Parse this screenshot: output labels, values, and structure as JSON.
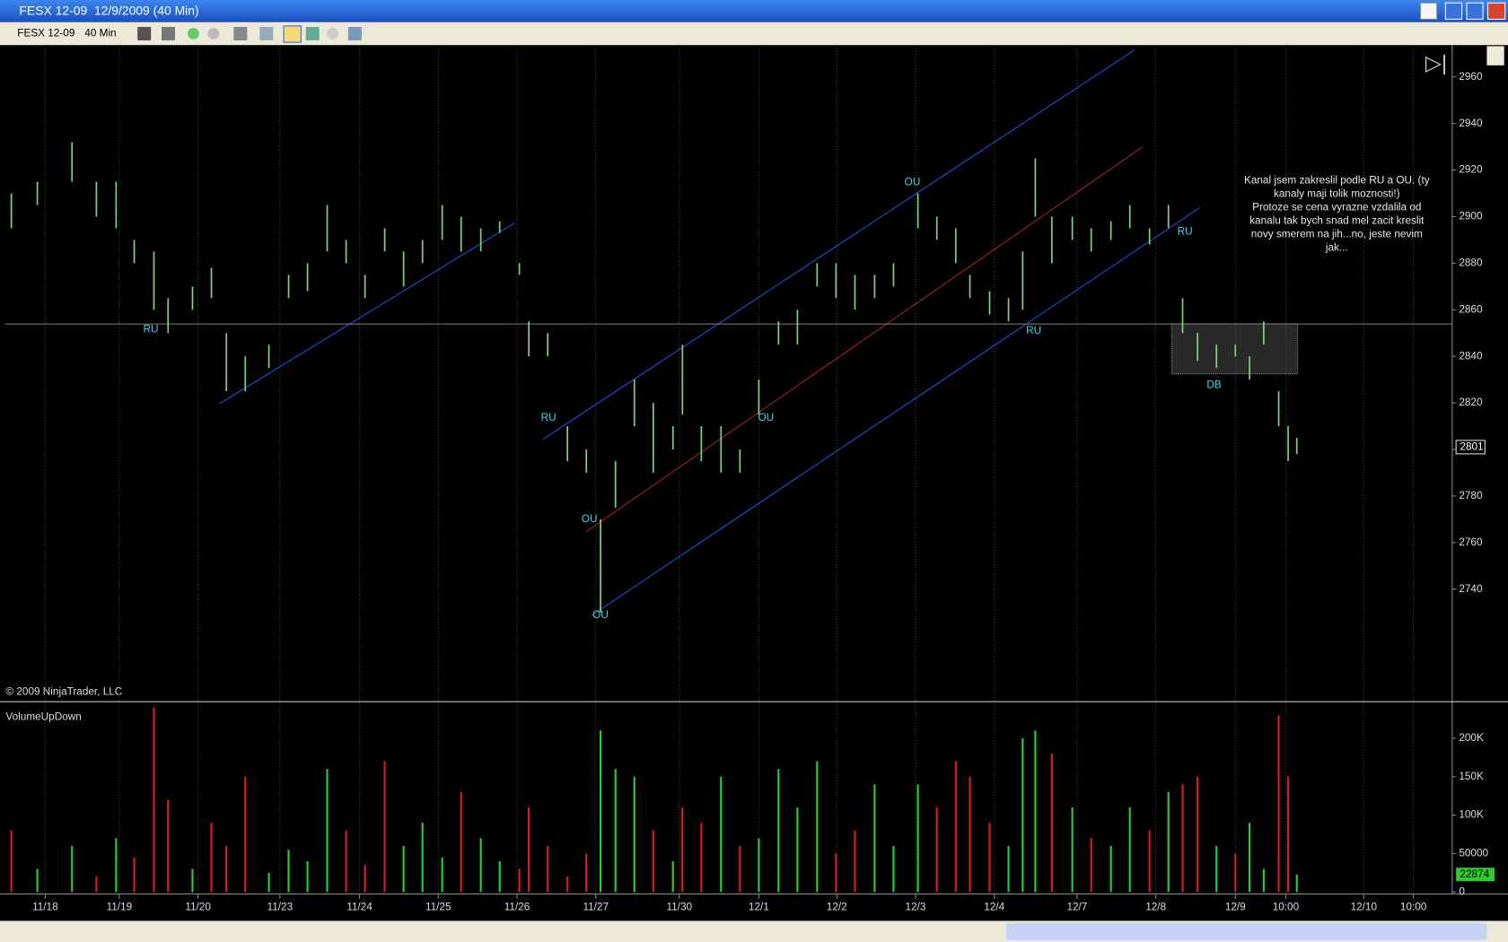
{
  "window": {
    "title": "FESX 12-09  12/9/2009 (40 Min)",
    "instrument": "FESX 12-09",
    "period": "40 Min"
  },
  "chart_data": [
    {
      "type": "range",
      "color": "#7fd07f",
      "x": [
        -0.43,
        -0.1,
        0.34,
        0.65,
        0.9,
        1.13,
        1.38,
        1.56,
        1.87,
        2.11,
        2.3,
        2.54,
        2.84,
        3.09,
        3.33,
        3.58,
        3.82,
        4.06,
        4.31,
        4.55,
        4.79,
        5.04,
        5.28,
        5.53,
        5.77,
        6.02,
        6.14,
        6.38,
        6.63,
        6.87,
        7.05,
        7.24,
        7.48,
        7.72,
        7.97,
        8.09,
        8.33,
        8.58,
        8.82,
        9.06,
        9.31,
        9.55,
        9.8,
        10.04,
        10.28,
        10.53,
        10.77,
        11.08,
        11.32,
        11.56,
        11.74,
        11.99,
        12.23,
        12.41,
        12.57,
        12.78,
        13.04,
        13.28,
        13.53,
        13.77,
        14.02,
        14.26,
        14.44,
        14.63,
        14.87,
        15.11,
        15.29,
        15.47,
        15.66,
        15.78,
        15.89
      ],
      "low": [
        2895,
        2905,
        2915,
        2900,
        2895,
        2880,
        2860,
        2850,
        2860,
        2865,
        2825,
        2825,
        2835,
        2865,
        2868,
        2885,
        2880,
        2865,
        2885,
        2870,
        2880,
        2890,
        2885,
        2885,
        2893,
        2875,
        2840,
        2840,
        2795,
        2790,
        2730,
        2775,
        2810,
        2790,
        2800,
        2815,
        2795,
        2790,
        2790,
        2815,
        2845,
        2845,
        2870,
        2865,
        2860,
        2865,
        2870,
        2895,
        2890,
        2880,
        2865,
        2858,
        2855,
        2860,
        2900,
        2880,
        2890,
        2885,
        2890,
        2895,
        2888,
        2895,
        2850,
        2838,
        2835,
        2840,
        2830,
        2845,
        2810,
        2795,
        2798
      ],
      "high": [
        2910,
        2915,
        2932,
        2915,
        2915,
        2890,
        2885,
        2865,
        2870,
        2878,
        2850,
        2840,
        2845,
        2875,
        2880,
        2905,
        2890,
        2875,
        2895,
        2885,
        2890,
        2905,
        2900,
        2895,
        2898,
        2880,
        2855,
        2850,
        2810,
        2800,
        2770,
        2795,
        2830,
        2820,
        2810,
        2845,
        2810,
        2810,
        2800,
        2830,
        2855,
        2860,
        2880,
        2880,
        2875,
        2875,
        2880,
        2910,
        2900,
        2895,
        2875,
        2868,
        2865,
        2885,
        2925,
        2900,
        2900,
        2895,
        2898,
        2905,
        2895,
        2905,
        2865,
        2850,
        2845,
        2845,
        2840,
        2855,
        2825,
        2810,
        2805
      ],
      "xlim": [
        -0.574,
        17.863
      ],
      "ylim": [
        2692.5,
        2972.4
      ],
      "yticks": [
        2740,
        2760,
        2780,
        2800,
        2820,
        2840,
        2860,
        2880,
        2900,
        2920,
        2940,
        2960
      ],
      "last_value": 2801,
      "lines": [
        {
          "color": "#2050e0",
          "x": [
            2.21,
            5.96
          ],
          "y": [
            2819.6,
            2897.3
          ]
        },
        {
          "color": "#2050e0",
          "x": [
            6.32,
            13.83
          ],
          "y": [
            2804.4,
            2971.6
          ]
        },
        {
          "color": "#b02020",
          "x": [
            6.87,
            13.93
          ],
          "y": [
            2764.7,
            2929.9
          ]
        },
        {
          "color": "#2050e0",
          "x": [
            6.94,
            14.66
          ],
          "y": [
            2728.8,
            2903.9
          ]
        },
        {
          "color": "#808080",
          "x": [
            -0.51,
            17.86
          ],
          "y": [
            2853.9,
            2853.9
          ]
        }
      ],
      "box": {
        "x": [
          14.3,
          15.9
        ],
        "y": [
          2832.5,
          2854
        ]
      },
      "annotations": [
        {
          "text": "RU",
          "x": 1.34,
          "y": 2851.4
        },
        {
          "text": "RU",
          "x": 6.39,
          "y": 2813.5
        },
        {
          "text": "OU",
          "x": 6.91,
          "y": 2770
        },
        {
          "text": "OU",
          "x": 7.05,
          "y": 2728.8
        },
        {
          "text": "OU",
          "x": 9.15,
          "y": 2813.5
        },
        {
          "text": "OU",
          "x": 11.01,
          "y": 2914.6
        },
        {
          "text": "RU",
          "x": 12.55,
          "y": 2851
        },
        {
          "text": "RU",
          "x": 14.47,
          "y": 2893.5
        },
        {
          "text": "DB",
          "x": 14.84,
          "y": 2827.5
        }
      ],
      "note": [
        "Kanal jsem zakreslil podle RU a OU. (ty",
        "kanaly maji tolik moznosti!)",
        "Protoze se cena vyrazne vzdalila od",
        "kanalu tak bych snad mel zacit kreslit",
        "novy smerem na jih...no, jeste nevim",
        "jak..."
      ],
      "copyright": "© 2009 NinjaTrader, LLC"
    },
    {
      "type": "bar",
      "title": "VolumeUpDown",
      "x": [
        -0.43,
        -0.1,
        0.34,
        0.65,
        0.9,
        1.13,
        1.38,
        1.56,
        1.87,
        2.11,
        2.3,
        2.54,
        2.84,
        3.09,
        3.33,
        3.58,
        3.82,
        4.06,
        4.31,
        4.55,
        4.79,
        5.04,
        5.28,
        5.53,
        5.77,
        6.02,
        6.14,
        6.38,
        6.63,
        6.87,
        7.05,
        7.24,
        7.48,
        7.72,
        7.97,
        8.09,
        8.33,
        8.58,
        8.82,
        9.06,
        9.31,
        9.55,
        9.8,
        10.04,
        10.28,
        10.53,
        10.77,
        11.08,
        11.32,
        11.56,
        11.74,
        11.99,
        12.23,
        12.41,
        12.57,
        12.78,
        13.04,
        13.28,
        13.53,
        13.77,
        14.02,
        14.26,
        14.44,
        14.63,
        14.87,
        15.11,
        15.29,
        15.47,
        15.66,
        15.78,
        15.89
      ],
      "values": [
        80000,
        30000,
        60000,
        20000,
        70000,
        45000,
        240000,
        120000,
        30000,
        90000,
        60000,
        150000,
        25000,
        55000,
        40000,
        160000,
        80000,
        35000,
        170000,
        60000,
        90000,
        45000,
        130000,
        70000,
        40000,
        30000,
        110000,
        60000,
        20000,
        50000,
        210000,
        160000,
        150000,
        80000,
        40000,
        110000,
        90000,
        150000,
        60000,
        70000,
        160000,
        110000,
        170000,
        50000,
        80000,
        140000,
        60000,
        140000,
        110000,
        170000,
        150000,
        90000,
        60000,
        200000,
        210000,
        180000,
        110000,
        70000,
        60000,
        110000,
        80000,
        130000,
        140000,
        150000,
        60000,
        50000,
        90000,
        30000,
        230000,
        150000,
        22874
      ],
      "colors": [
        "#d62020",
        "#2ecc2e",
        "#2ecc2e",
        "#d62020",
        "#2ecc2e",
        "#d62020",
        "#d62020",
        "#d62020",
        "#2ecc2e",
        "#d62020",
        "#d62020",
        "#d62020",
        "#2ecc2e",
        "#2ecc2e",
        "#2ecc2e",
        "#2ecc2e",
        "#d62020",
        "#d62020",
        "#d62020",
        "#2ecc2e",
        "#2ecc2e",
        "#2ecc2e",
        "#d62020",
        "#2ecc2e",
        "#2ecc2e",
        "#d62020",
        "#d62020",
        "#d62020",
        "#d62020",
        "#d62020",
        "#2ecc2e",
        "#2ecc2e",
        "#2ecc2e",
        "#d62020",
        "#2ecc2e",
        "#d62020",
        "#d62020",
        "#2ecc2e",
        "#d62020",
        "#2ecc2e",
        "#2ecc2e",
        "#2ecc2e",
        "#2ecc2e",
        "#d62020",
        "#d62020",
        "#2ecc2e",
        "#2ecc2e",
        "#2ecc2e",
        "#d62020",
        "#d62020",
        "#d62020",
        "#d62020",
        "#2ecc2e",
        "#2ecc2e",
        "#2ecc2e",
        "#d62020",
        "#2ecc2e",
        "#d62020",
        "#2ecc2e",
        "#2ecc2e",
        "#d62020",
        "#2ecc2e",
        "#d62020",
        "#d62020",
        "#2ecc2e",
        "#d62020",
        "#2ecc2e",
        "#2ecc2e",
        "#d62020",
        "#d62020",
        "#2ecc2e"
      ],
      "last_value": 22874,
      "xlim": [
        -0.574,
        17.863
      ],
      "ylim": [
        0,
        241250
      ],
      "yticks": [
        0,
        50000,
        {
          "value": 100000,
          "label": "100K"
        },
        {
          "value": 150000,
          "label": "150K"
        },
        {
          "value": 200000,
          "label": "200K"
        }
      ],
      "xticks": [
        {
          "value": 0,
          "label": "11/18"
        },
        {
          "value": 0.94,
          "label": "11/19"
        },
        {
          "value": 1.94,
          "label": "11/20"
        },
        {
          "value": 2.98,
          "label": "11/23"
        },
        {
          "value": 3.99,
          "label": "11/24"
        },
        {
          "value": 4.99,
          "label": "11/25"
        },
        {
          "value": 5.99,
          "label": "11/26"
        },
        {
          "value": 6.99,
          "label": "11/27"
        },
        {
          "value": 8.05,
          "label": "11/30"
        },
        {
          "value": 9.06,
          "label": "12/1"
        },
        {
          "value": 10.05,
          "label": "12/2"
        },
        {
          "value": 11.05,
          "label": "12/3"
        },
        {
          "value": 12.05,
          "label": "12/4"
        },
        {
          "value": 13.1,
          "label": "12/7"
        },
        {
          "value": 14.1,
          "label": "12/8"
        },
        {
          "value": 15.11,
          "label": "12/9"
        },
        {
          "value": 15.75,
          "label": "10:00"
        },
        {
          "value": 16.74,
          "label": "12/10"
        },
        {
          "value": 17.37,
          "label": "10:00"
        }
      ]
    }
  ]
}
